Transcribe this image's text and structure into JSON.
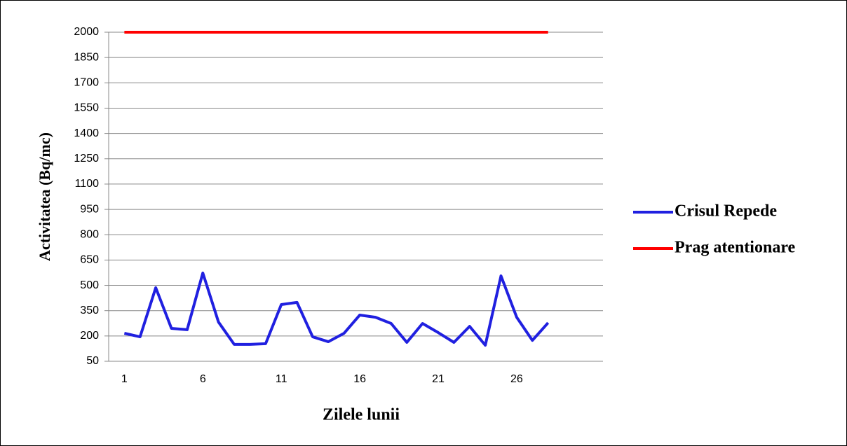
{
  "chart_data": {
    "type": "line",
    "x_label": "Zilele lunii",
    "y_label": "Activitatea (Bq/mc)",
    "x": [
      1,
      2,
      3,
      4,
      5,
      6,
      7,
      8,
      9,
      10,
      11,
      12,
      13,
      14,
      15,
      16,
      17,
      18,
      19,
      20,
      21,
      22,
      23,
      24,
      25,
      26,
      27,
      28
    ],
    "series": [
      {
        "name": "Crisul Repede",
        "color": "#2020e0",
        "values": [
          216,
          195,
          486,
          245,
          237,
          573,
          282,
          150,
          150,
          154,
          386,
          399,
          195,
          166,
          216,
          324,
          311,
          274,
          162,
          274,
          220,
          162,
          257,
          145,
          556,
          311,
          174,
          278
        ]
      },
      {
        "name": "Prag atentionare",
        "color": "#ff0000",
        "values": [
          2000,
          2000,
          2000,
          2000,
          2000,
          2000,
          2000,
          2000,
          2000,
          2000,
          2000,
          2000,
          2000,
          2000,
          2000,
          2000,
          2000,
          2000,
          2000,
          2000,
          2000,
          2000,
          2000,
          2000,
          2000,
          2000,
          2000,
          2000
        ]
      }
    ],
    "xlim": [
      0,
      31.5
    ],
    "xticks": [
      1,
      6,
      11,
      16,
      21,
      26
    ],
    "ylim": [
      50,
      2000
    ],
    "yticks": [
      50,
      200,
      350,
      500,
      650,
      800,
      950,
      1100,
      1250,
      1400,
      1550,
      1700,
      1850,
      2000
    ],
    "grid": true,
    "legend": "right"
  }
}
